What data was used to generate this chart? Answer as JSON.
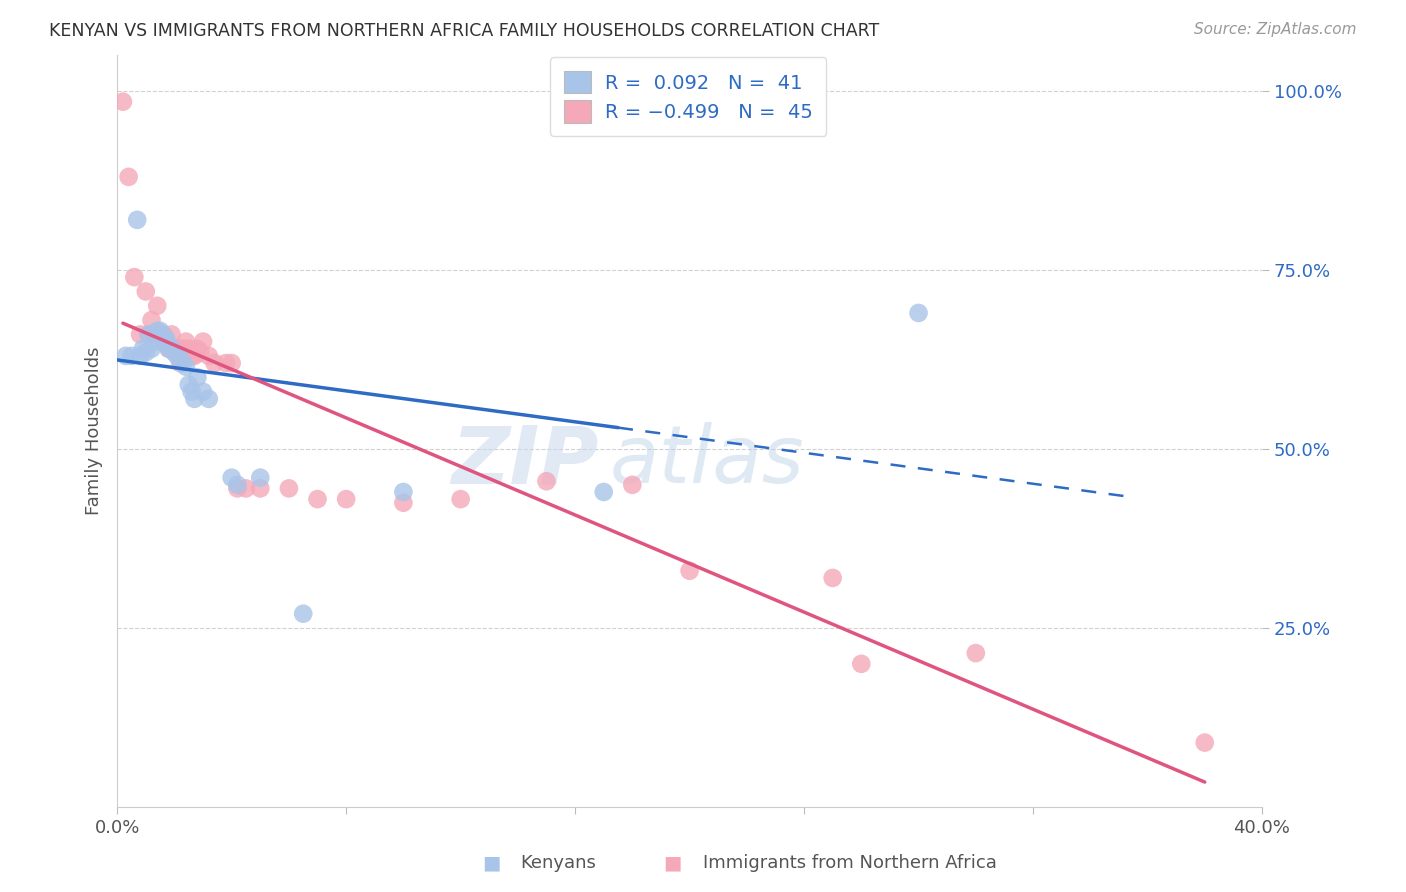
{
  "title": "KENYAN VS IMMIGRANTS FROM NORTHERN AFRICA FAMILY HOUSEHOLDS CORRELATION CHART",
  "source": "Source: ZipAtlas.com",
  "ylabel": "Family Households",
  "xlim": [
    0.0,
    0.4
  ],
  "ylim": [
    0.0,
    1.05
  ],
  "yticks": [
    0.25,
    0.5,
    0.75,
    1.0
  ],
  "ytick_labels": [
    "25.0%",
    "50.0%",
    "75.0%",
    "100.0%"
  ],
  "blue_R": 0.092,
  "blue_N": 41,
  "pink_R": -0.499,
  "pink_N": 45,
  "blue_color": "#A8C4E8",
  "pink_color": "#F4A8B8",
  "blue_line_color": "#2E6BC4",
  "pink_line_color": "#E05580",
  "watermark_zip": "ZIP",
  "watermark_atlas": "atlas",
  "blue_scatter_x": [
    0.003,
    0.005,
    0.007,
    0.008,
    0.009,
    0.01,
    0.011,
    0.012,
    0.013,
    0.013,
    0.014,
    0.014,
    0.015,
    0.015,
    0.016,
    0.016,
    0.017,
    0.017,
    0.018,
    0.018,
    0.019,
    0.019,
    0.02,
    0.02,
    0.021,
    0.022,
    0.023,
    0.024,
    0.025,
    0.026,
    0.027,
    0.028,
    0.03,
    0.032,
    0.04,
    0.042,
    0.05,
    0.065,
    0.1,
    0.17,
    0.28
  ],
  "blue_scatter_y": [
    0.63,
    0.63,
    0.82,
    0.63,
    0.64,
    0.635,
    0.66,
    0.64,
    0.66,
    0.65,
    0.66,
    0.665,
    0.665,
    0.66,
    0.65,
    0.655,
    0.655,
    0.65,
    0.645,
    0.64,
    0.64,
    0.64,
    0.635,
    0.635,
    0.63,
    0.625,
    0.62,
    0.615,
    0.59,
    0.58,
    0.57,
    0.6,
    0.58,
    0.57,
    0.46,
    0.45,
    0.46,
    0.27,
    0.44,
    0.44,
    0.69
  ],
  "pink_scatter_x": [
    0.002,
    0.004,
    0.006,
    0.008,
    0.01,
    0.011,
    0.012,
    0.013,
    0.014,
    0.015,
    0.016,
    0.016,
    0.017,
    0.018,
    0.019,
    0.02,
    0.021,
    0.022,
    0.023,
    0.024,
    0.025,
    0.026,
    0.027,
    0.028,
    0.029,
    0.03,
    0.032,
    0.034,
    0.038,
    0.04,
    0.042,
    0.045,
    0.05,
    0.06,
    0.07,
    0.08,
    0.1,
    0.12,
    0.15,
    0.18,
    0.2,
    0.25,
    0.26,
    0.3,
    0.38
  ],
  "pink_scatter_y": [
    0.985,
    0.88,
    0.74,
    0.66,
    0.72,
    0.66,
    0.68,
    0.66,
    0.7,
    0.66,
    0.66,
    0.65,
    0.65,
    0.64,
    0.66,
    0.64,
    0.64,
    0.62,
    0.64,
    0.65,
    0.64,
    0.63,
    0.63,
    0.64,
    0.635,
    0.65,
    0.63,
    0.62,
    0.62,
    0.62,
    0.445,
    0.445,
    0.445,
    0.445,
    0.43,
    0.43,
    0.425,
    0.43,
    0.455,
    0.45,
    0.33,
    0.32,
    0.2,
    0.215,
    0.09
  ],
  "background_color": "#FFFFFF",
  "grid_color": "#CCCCCC"
}
